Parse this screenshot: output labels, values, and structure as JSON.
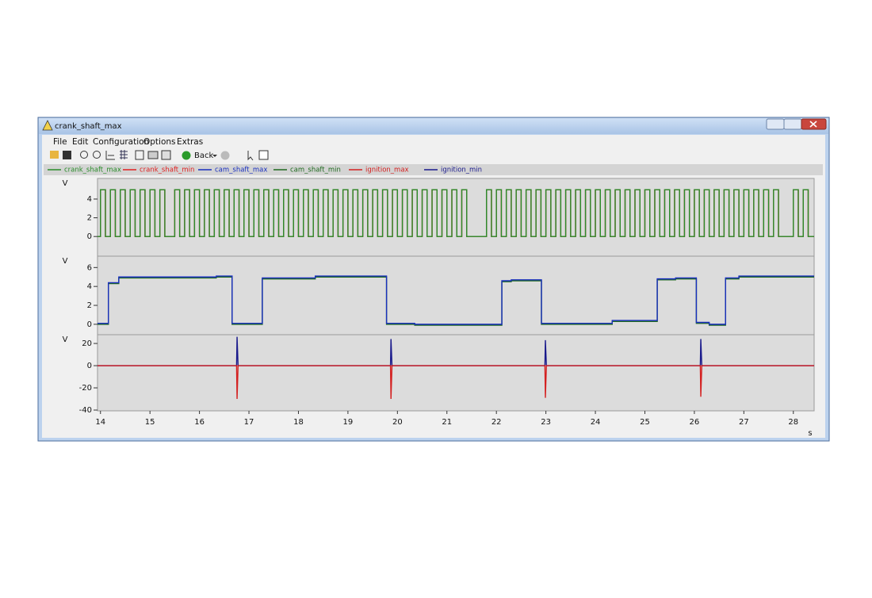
{
  "window": {
    "title": "crank_shaft_max",
    "menu": [
      "File",
      "Edit",
      "Configuration",
      "Options",
      "Extras"
    ],
    "toolbar": {
      "back": "Back"
    }
  },
  "chart_data": [
    {
      "type": "line",
      "step": true,
      "ylabel": "V",
      "xlim": [
        13.94,
        28.42
      ],
      "ylim": [
        -2.1,
        6.2
      ],
      "yticks": [
        0,
        2,
        4
      ],
      "grid": false,
      "series": [
        {
          "name": "crank_shaft_max",
          "color": "#2a8c2a",
          "x": [
            13.94,
            14,
            14.1,
            14.2,
            14.3,
            14.4,
            14.5,
            14.6,
            14.7,
            14.8,
            14.9,
            15,
            15.1,
            15.2,
            15.3,
            15.5,
            15.6,
            15.7,
            15.8,
            15.9,
            16,
            16.1,
            16.2,
            16.3,
            16.4,
            16.5,
            16.6,
            16.7,
            16.8,
            16.9,
            17,
            17.1,
            17.2,
            17.3,
            17.4,
            17.5,
            17.6,
            17.7,
            17.8,
            17.9,
            18,
            18.1,
            18.2,
            18.3,
            18.4,
            18.5,
            18.6,
            18.7,
            18.8,
            18.9,
            19,
            19.1,
            19.2,
            19.3,
            19.4,
            19.5,
            19.6,
            19.7,
            19.8,
            19.9,
            20,
            20.1,
            20.2,
            20.3,
            20.4,
            20.5,
            20.6,
            20.7,
            20.8,
            20.9,
            21,
            21.1,
            21.2,
            21.3,
            21.4,
            21.8,
            21.9,
            22,
            22.1,
            22.2,
            22.3,
            22.4,
            22.5,
            22.6,
            22.7,
            22.8,
            22.9,
            23,
            23.1,
            23.2,
            23.3,
            23.4,
            23.5,
            23.6,
            23.7,
            23.8,
            23.9,
            24,
            24.1,
            24.2,
            24.3,
            24.4,
            24.5,
            24.6,
            24.7,
            24.8,
            24.9,
            25,
            25.1,
            25.2,
            25.3,
            25.4,
            25.5,
            25.6,
            25.7,
            25.8,
            25.9,
            26,
            26.1,
            26.2,
            26.3,
            26.4,
            26.5,
            26.6,
            26.7,
            26.8,
            26.9,
            27,
            27.1,
            27.2,
            27.3,
            27.4,
            27.5,
            27.6,
            27.7,
            28,
            28.1,
            28.2,
            28.3
          ],
          "values": [
            0,
            5,
            0,
            5,
            0,
            5,
            0,
            5,
            0,
            5,
            0,
            5,
            0,
            5,
            0,
            5,
            0,
            5,
            0,
            5,
            0,
            5,
            0,
            5,
            0,
            5,
            0,
            5,
            0,
            5,
            0,
            5,
            0,
            5,
            0,
            5,
            0,
            5,
            0,
            5,
            0,
            5,
            0,
            5,
            0,
            5,
            0,
            5,
            0,
            5,
            0,
            5,
            0,
            5,
            0,
            5,
            0,
            5,
            0,
            5,
            0,
            5,
            0,
            5,
            0,
            5,
            0,
            5,
            0,
            5,
            0,
            5,
            0,
            5,
            0,
            5,
            0,
            5,
            0,
            5,
            0,
            5,
            0,
            5,
            0,
            5,
            0,
            5,
            0,
            5,
            0,
            5,
            0,
            5,
            0,
            5,
            0,
            5,
            0,
            5,
            0,
            5,
            0,
            5,
            0,
            5,
            0,
            5,
            0,
            5,
            0,
            5,
            0,
            5,
            0,
            5,
            0,
            5,
            0,
            5,
            0,
            5,
            0,
            5,
            0,
            5,
            0,
            5,
            0,
            5,
            0,
            5,
            0,
            5,
            0,
            5,
            0,
            5,
            0
          ]
        },
        {
          "name": "crank_shaft_min",
          "color": "#e02020",
          "x": [
            13.94,
            14,
            14.1,
            14.2,
            14.3,
            14.4,
            14.5,
            14.6,
            14.7,
            14.8,
            14.9,
            15,
            15.1,
            15.2,
            15.3,
            15.5,
            15.6,
            15.7,
            15.8,
            15.9,
            16,
            16.1,
            16.2,
            16.3,
            16.4,
            16.5,
            16.6,
            16.7,
            16.8,
            16.9,
            17,
            17.1,
            17.2,
            17.3,
            17.4,
            17.5,
            17.6,
            17.7,
            17.8,
            17.9,
            18,
            18.1,
            18.2,
            18.3,
            18.4,
            18.5,
            18.6,
            18.7,
            18.8,
            18.9,
            19,
            19.1,
            19.2,
            19.3,
            19.4,
            19.5,
            19.6,
            19.7,
            19.8,
            19.9,
            20,
            20.1,
            20.2,
            20.3,
            20.4,
            20.5,
            20.6,
            20.7,
            20.8,
            20.9,
            21,
            21.1,
            21.2,
            21.3,
            21.4,
            21.8,
            21.9,
            22,
            22.1,
            22.2,
            22.3,
            22.4,
            22.5,
            22.6,
            22.7,
            22.8,
            22.9,
            23,
            23.1,
            23.2,
            23.3,
            23.4,
            23.5,
            23.6,
            23.7,
            23.8,
            23.9,
            24,
            24.1,
            24.2,
            24.3,
            24.4,
            24.5,
            24.6,
            24.7,
            24.8,
            24.9,
            25,
            25.1,
            25.2,
            25.3,
            25.4,
            25.5,
            25.6,
            25.7,
            25.8,
            25.9,
            26,
            26.1,
            26.2,
            26.3,
            26.4,
            26.5,
            26.6,
            26.7,
            26.8,
            26.9,
            27,
            27.1,
            27.2,
            27.3,
            27.4,
            27.5,
            27.6,
            27.7,
            28,
            28.1,
            28.2,
            28.3
          ],
          "values": [
            0,
            5,
            0,
            5,
            0,
            5,
            0,
            5,
            0,
            5,
            0,
            5,
            0,
            5,
            0,
            5,
            0,
            5,
            0,
            5,
            0,
            5,
            0,
            5,
            0,
            5,
            0,
            5,
            0,
            5,
            0,
            5,
            0,
            5,
            0,
            5,
            0,
            5,
            0,
            5,
            0,
            5,
            0,
            5,
            0,
            5,
            0,
            5,
            0,
            5,
            0,
            5,
            0,
            5,
            0,
            5,
            0,
            5,
            0,
            5,
            0,
            5,
            0,
            5,
            0,
            5,
            0,
            5,
            0,
            5,
            0,
            5,
            0,
            5,
            0,
            5,
            0,
            5,
            0,
            5,
            0,
            5,
            0,
            5,
            0,
            5,
            0,
            5,
            0,
            5,
            0,
            5,
            0,
            5,
            0,
            5,
            0,
            5,
            0,
            5,
            0,
            5,
            0,
            5,
            0,
            5,
            0,
            5,
            0,
            5,
            0,
            5,
            0,
            5,
            0,
            5,
            0,
            5,
            0,
            5,
            0,
            5,
            0,
            5,
            0,
            5,
            0,
            5,
            0,
            5,
            0,
            5,
            0,
            5,
            0,
            5,
            0,
            5,
            0
          ]
        }
      ]
    },
    {
      "type": "line",
      "step": true,
      "ylabel": "V",
      "xlim": [
        13.94,
        28.42
      ],
      "ylim": [
        -1.1,
        7.2
      ],
      "yticks": [
        0,
        2,
        4,
        6
      ],
      "grid": false,
      "series": [
        {
          "name": "cam_shaft_max",
          "color": "#1a2fbf",
          "x": [
            13.94,
            14.16,
            14.37,
            16.34,
            16.66,
            17.27,
            18.34,
            19.78,
            20.35,
            22.11,
            22.3,
            22.91,
            24.34,
            25.25,
            25.62,
            26.04,
            26.3,
            26.63,
            26.9
          ],
          "values": [
            0.1,
            4.4,
            5,
            5.1,
            0.1,
            4.9,
            5.1,
            0.1,
            0,
            4.6,
            4.7,
            0.1,
            0.4,
            4.8,
            4.9,
            0.2,
            0,
            4.9,
            5.1
          ]
        },
        {
          "name": "cam_shaft_min",
          "color": "#1f6a1f",
          "x": [
            13.94,
            14.16,
            14.37,
            16.34,
            16.66,
            17.27,
            18.34,
            19.78,
            20.35,
            22.11,
            22.3,
            22.91,
            24.34,
            25.25,
            25.62,
            26.04,
            26.3,
            26.63,
            26.9
          ],
          "values": [
            0,
            4.3,
            4.9,
            5,
            0,
            4.8,
            5,
            0,
            -0.1,
            4.5,
            4.6,
            0,
            0.3,
            4.7,
            4.8,
            0.1,
            -0.1,
            4.8,
            5
          ]
        }
      ]
    },
    {
      "type": "line",
      "ylabel": "V",
      "xlabel": "s",
      "xlim": [
        13.94,
        28.42
      ],
      "ylim": [
        -40.7,
        27.9
      ],
      "yticks": [
        -40,
        -20,
        0,
        20
      ],
      "xticks": [
        14,
        15,
        16,
        17,
        18,
        19,
        20,
        21,
        22,
        23,
        24,
        25,
        26,
        27,
        28
      ],
      "grid": false,
      "series": [
        {
          "name": "ignition_max",
          "color": "#d42020",
          "x": [
            13.94,
            16.75,
            16.76,
            16.78,
            19.86,
            19.87,
            19.89,
            22.98,
            22.99,
            23.01,
            26.12,
            26.13,
            26.15,
            28.42
          ],
          "values": [
            0,
            0,
            -30,
            0,
            0,
            -30,
            0,
            0,
            -29,
            0,
            0,
            -28,
            0,
            0
          ]
        },
        {
          "name": "ignition_min",
          "color": "#1a1a8c",
          "x": [
            13.94,
            16.75,
            16.76,
            16.78,
            19.86,
            19.87,
            19.89,
            22.98,
            22.99,
            23.01,
            26.12,
            26.13,
            26.15,
            28.42
          ],
          "values": [
            0,
            0,
            26,
            0,
            0,
            24,
            0,
            0,
            23,
            0,
            0,
            24,
            0,
            0
          ]
        }
      ]
    }
  ]
}
